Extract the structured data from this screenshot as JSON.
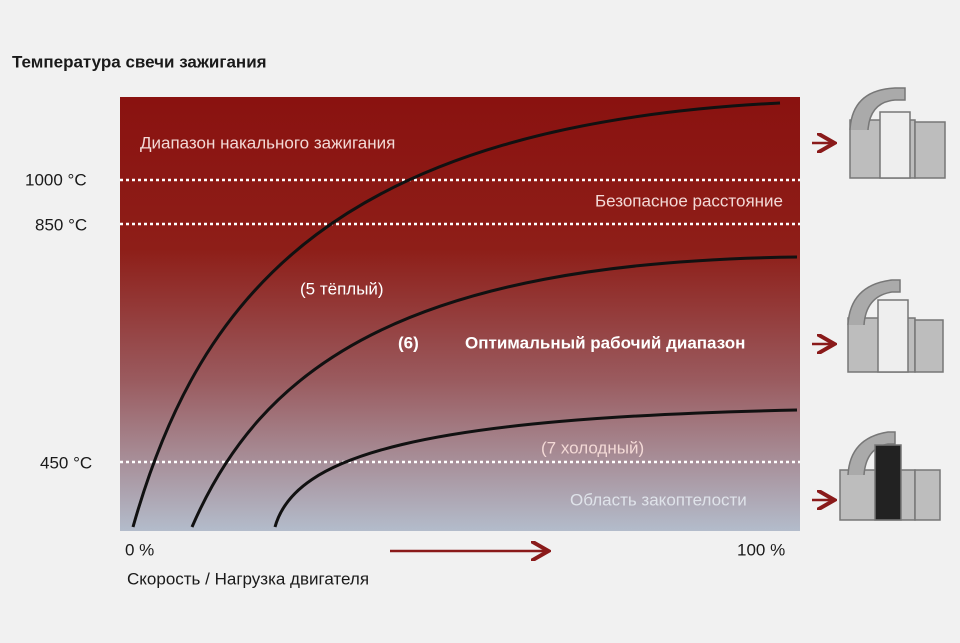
{
  "title": "Температура свечи зажигания",
  "y_labels": [
    "1000 °C",
    "850 °C",
    "450 °C"
  ],
  "zones": [
    "Диапазон накального зажигания",
    "Безопасное расстояние",
    "Оптимальный рабочий диапазон",
    "Область закоптелости"
  ],
  "curve_labels": [
    "(5 тёплый)",
    "(6)",
    "(7 холодный)"
  ],
  "x_labels": {
    "start": "0 %",
    "end": "100 %"
  },
  "x_axis_label": "Скорость / Нагрузка двигателя"
}
